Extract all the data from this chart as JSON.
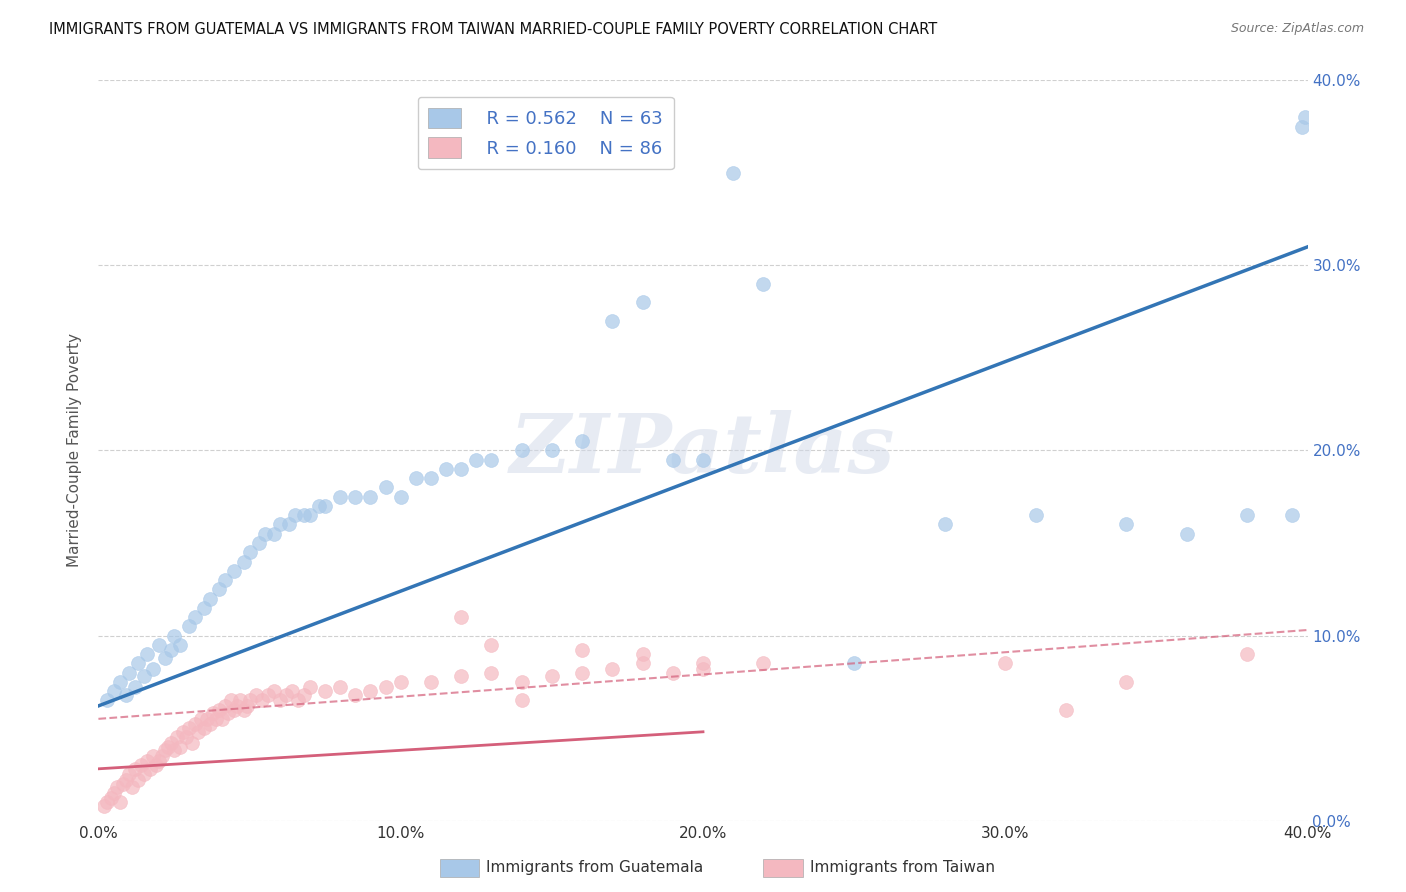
{
  "title": "IMMIGRANTS FROM GUATEMALA VS IMMIGRANTS FROM TAIWAN MARRIED-COUPLE FAMILY POVERTY CORRELATION CHART",
  "source": "Source: ZipAtlas.com",
  "ylabel": "Married-Couple Family Poverty",
  "xlim": [
    0.0,
    0.4
  ],
  "ylim": [
    0.0,
    0.4
  ],
  "xtick_labels": [
    "0.0%",
    "",
    "10.0%",
    "",
    "20.0%",
    "",
    "30.0%",
    "",
    "40.0%"
  ],
  "xtick_vals": [
    0.0,
    0.05,
    0.1,
    0.15,
    0.2,
    0.25,
    0.3,
    0.35,
    0.4
  ],
  "ytick_labels_right": [
    "0.0%",
    "10.0%",
    "20.0%",
    "30.0%",
    "40.0%"
  ],
  "ytick_vals": [
    0.0,
    0.1,
    0.2,
    0.3,
    0.4
  ],
  "guatemala_color": "#a8c8e8",
  "taiwan_color": "#f4b8c0",
  "guatemala_fill_color": "#a8c8e8",
  "taiwan_fill_color": "#f4b8c0",
  "guatemala_line_color": "#3375b5",
  "taiwan_line_color": "#d45f7a",
  "taiwan_dash_color": "#d45f7a",
  "legend_R_guatemala": "R = 0.562",
  "legend_N_guatemala": "N = 63",
  "legend_R_taiwan": "R = 0.160",
  "legend_N_taiwan": "N = 86",
  "watermark": "ZIPatlas",
  "background_color": "#ffffff",
  "grid_color": "#d0d0d0",
  "guatemala_scatter_x": [
    0.003,
    0.005,
    0.007,
    0.009,
    0.01,
    0.012,
    0.013,
    0.015,
    0.016,
    0.018,
    0.02,
    0.022,
    0.024,
    0.025,
    0.027,
    0.03,
    0.032,
    0.035,
    0.037,
    0.04,
    0.042,
    0.045,
    0.048,
    0.05,
    0.053,
    0.055,
    0.058,
    0.06,
    0.063,
    0.065,
    0.068,
    0.07,
    0.073,
    0.075,
    0.08,
    0.085,
    0.09,
    0.095,
    0.1,
    0.105,
    0.11,
    0.115,
    0.12,
    0.125,
    0.13,
    0.14,
    0.15,
    0.16,
    0.17,
    0.18,
    0.19,
    0.2,
    0.21,
    0.22,
    0.25,
    0.28,
    0.31,
    0.34,
    0.36,
    0.38,
    0.395,
    0.398,
    0.399
  ],
  "guatemala_scatter_y": [
    0.065,
    0.07,
    0.075,
    0.068,
    0.08,
    0.072,
    0.085,
    0.078,
    0.09,
    0.082,
    0.095,
    0.088,
    0.092,
    0.1,
    0.095,
    0.105,
    0.11,
    0.115,
    0.12,
    0.125,
    0.13,
    0.135,
    0.14,
    0.145,
    0.15,
    0.155,
    0.155,
    0.16,
    0.16,
    0.165,
    0.165,
    0.165,
    0.17,
    0.17,
    0.175,
    0.175,
    0.175,
    0.18,
    0.175,
    0.185,
    0.185,
    0.19,
    0.19,
    0.195,
    0.195,
    0.2,
    0.2,
    0.205,
    0.27,
    0.28,
    0.195,
    0.195,
    0.35,
    0.29,
    0.085,
    0.16,
    0.165,
    0.16,
    0.155,
    0.165,
    0.165,
    0.375,
    0.38
  ],
  "taiwan_scatter_x": [
    0.002,
    0.003,
    0.004,
    0.005,
    0.006,
    0.007,
    0.008,
    0.009,
    0.01,
    0.011,
    0.012,
    0.013,
    0.014,
    0.015,
    0.016,
    0.017,
    0.018,
    0.019,
    0.02,
    0.021,
    0.022,
    0.023,
    0.024,
    0.025,
    0.026,
    0.027,
    0.028,
    0.029,
    0.03,
    0.031,
    0.032,
    0.033,
    0.034,
    0.035,
    0.036,
    0.037,
    0.038,
    0.039,
    0.04,
    0.041,
    0.042,
    0.043,
    0.044,
    0.045,
    0.046,
    0.047,
    0.048,
    0.049,
    0.05,
    0.052,
    0.054,
    0.056,
    0.058,
    0.06,
    0.062,
    0.064,
    0.066,
    0.068,
    0.07,
    0.075,
    0.08,
    0.085,
    0.09,
    0.095,
    0.1,
    0.11,
    0.12,
    0.13,
    0.14,
    0.15,
    0.16,
    0.17,
    0.18,
    0.19,
    0.2,
    0.12,
    0.13,
    0.14,
    0.16,
    0.18,
    0.2,
    0.22,
    0.3,
    0.32,
    0.34,
    0.38
  ],
  "taiwan_scatter_y": [
    0.008,
    0.01,
    0.012,
    0.015,
    0.018,
    0.01,
    0.02,
    0.022,
    0.025,
    0.018,
    0.028,
    0.022,
    0.03,
    0.025,
    0.032,
    0.028,
    0.035,
    0.03,
    0.032,
    0.035,
    0.038,
    0.04,
    0.042,
    0.038,
    0.045,
    0.04,
    0.048,
    0.045,
    0.05,
    0.042,
    0.052,
    0.048,
    0.055,
    0.05,
    0.055,
    0.052,
    0.058,
    0.055,
    0.06,
    0.055,
    0.062,
    0.058,
    0.065,
    0.06,
    0.062,
    0.065,
    0.06,
    0.062,
    0.065,
    0.068,
    0.065,
    0.068,
    0.07,
    0.065,
    0.068,
    0.07,
    0.065,
    0.068,
    0.072,
    0.07,
    0.072,
    0.068,
    0.07,
    0.072,
    0.075,
    0.075,
    0.078,
    0.08,
    0.075,
    0.078,
    0.08,
    0.082,
    0.085,
    0.08,
    0.082,
    0.11,
    0.095,
    0.065,
    0.092,
    0.09,
    0.085,
    0.085,
    0.085,
    0.06,
    0.075,
    0.09
  ],
  "guatemala_line_intercept": 0.062,
  "guatemala_line_slope": 0.62,
  "taiwan_solid_intercept": 0.028,
  "taiwan_solid_slope": 0.1,
  "taiwan_dash_intercept": 0.055,
  "taiwan_dash_slope": 0.12
}
